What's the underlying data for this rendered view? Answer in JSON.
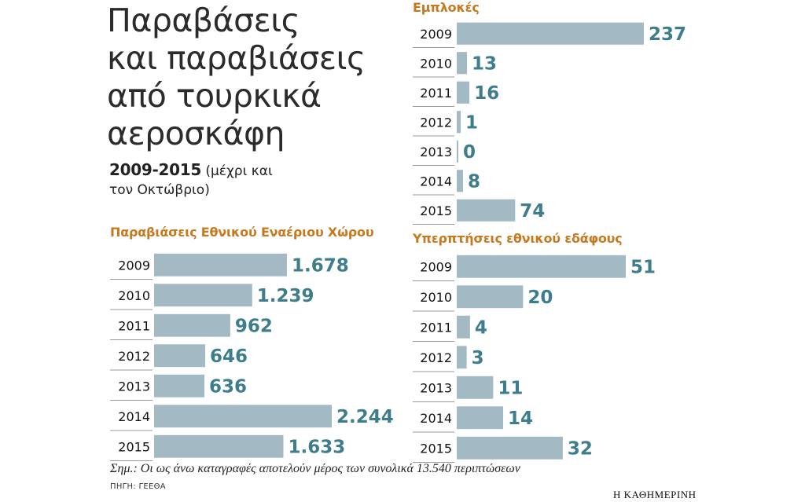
{
  "title_lines": [
    "Παραβάσεις",
    "και παραβιάσεις",
    "από τουρκικά",
    "αεροσκάφη"
  ],
  "years_bold": "2009-2015",
  "years_note_1": " (μέχρι και",
  "years_note_2": "τον Οκτώβριο)",
  "colors": {
    "bar": "#a3b9c4",
    "value": "#3d7d8c",
    "title": "#c8791e",
    "rule": "#9a9a9a"
  },
  "chart_data": [
    {
      "type": "bar",
      "orientation": "horizontal",
      "title": "Εμπλοκές",
      "categories": [
        "2009",
        "2010",
        "2011",
        "2012",
        "2013",
        "2014",
        "2015"
      ],
      "values": [
        237,
        13,
        16,
        1,
        0,
        8,
        74
      ],
      "value_labels": [
        "237",
        "13",
        "16",
        "1",
        "0",
        "8",
        "74"
      ],
      "xlim": [
        0,
        237
      ]
    },
    {
      "type": "bar",
      "orientation": "horizontal",
      "title": "Παραβιάσεις Εθνικού Εναέριου Χώρου",
      "categories": [
        "2009",
        "2010",
        "2011",
        "2012",
        "2013",
        "2014",
        "2015"
      ],
      "values": [
        1678,
        1239,
        962,
        646,
        636,
        2244,
        1633
      ],
      "value_labels": [
        "1.678",
        "1.239",
        "962",
        "646",
        "636",
        "2.244",
        "1.633"
      ],
      "xlim": [
        0,
        2244
      ]
    },
    {
      "type": "bar",
      "orientation": "horizontal",
      "title": "Υπερπτήσεις εθνικού εδάφους",
      "categories": [
        "2009",
        "2010",
        "2011",
        "2012",
        "2013",
        "2014",
        "2015"
      ],
      "values": [
        51,
        20,
        4,
        3,
        11,
        14,
        32
      ],
      "value_labels": [
        "51",
        "20",
        "4",
        "3",
        "11",
        "14",
        "32"
      ],
      "xlim": [
        0,
        51
      ]
    }
  ],
  "note": "Σημ.: Οι ως άνω καταγραφές αποτελούν μέρος των συνολικά 13.540 περιπτώσεων",
  "source": "ΠΗΓΗ: ΓΕΕΘΑ",
  "brand": "Η ΚΑΘΗΜΕΡΙΝΗ"
}
